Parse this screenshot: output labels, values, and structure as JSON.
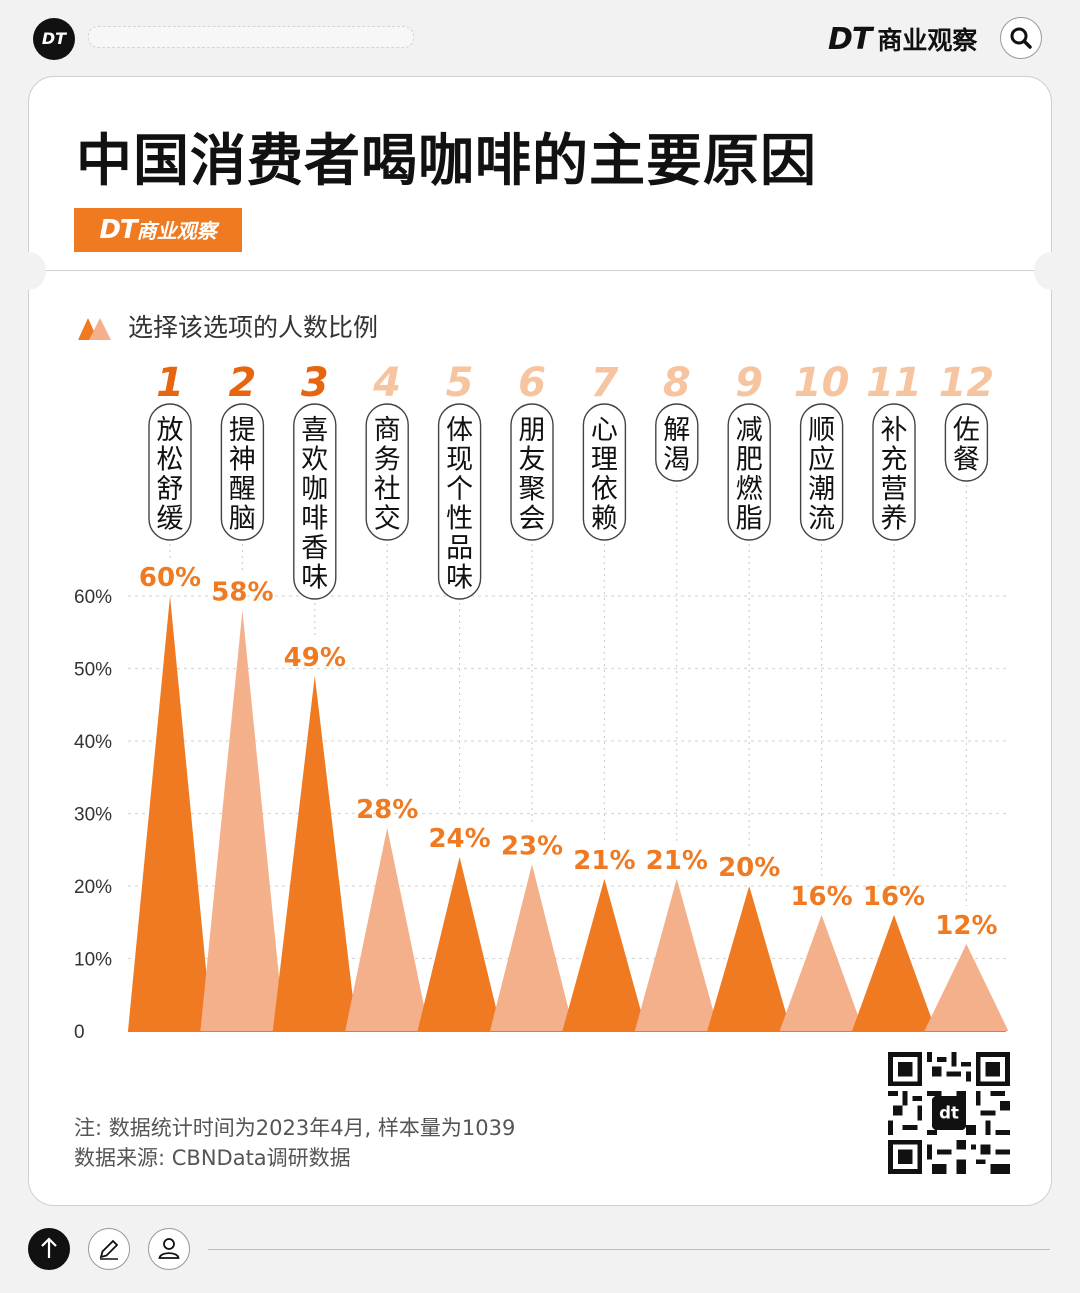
{
  "header": {
    "logo_text": "DT",
    "brand_dt": "DT",
    "brand_name": "商业观察"
  },
  "title": "中国消费者喝咖啡的主要原因",
  "brand_tag": {
    "dt": "DT",
    "name": "商业观察"
  },
  "legend_label": "选择该选项的人数比例",
  "colors": {
    "dark_orange": "#f07a21",
    "light_orange": "#f3b08a",
    "rank_top": "#e8650f",
    "rank_other": "#f6c49f"
  },
  "chart_data": {
    "type": "bar",
    "title": "中国消费者喝咖啡的主要原因",
    "ylim": [
      0,
      60
    ],
    "yticks": [
      "0",
      "10%",
      "20%",
      "30%",
      "40%",
      "50%",
      "60%"
    ],
    "grid": true,
    "legend": "top-left",
    "series": [
      {
        "name": "选择该选项的人数比例",
        "values": [
          60,
          58,
          49,
          28,
          24,
          23,
          21,
          21,
          20,
          16,
          16,
          12
        ],
        "labels": [
          "60%",
          "58%",
          "49%",
          "28%",
          "24%",
          "23%",
          "21%",
          "21%",
          "20%",
          "16%",
          "16%",
          "12%"
        ]
      }
    ],
    "categories": [
      "放松舒缓",
      "提神醒脑",
      "喜欢咖啡香味",
      "商务社交",
      "体现个性品味",
      "朋友聚会",
      "心理依赖",
      "解渴",
      "减肥燃脂",
      "顺应潮流",
      "补充营养",
      "佐餐"
    ],
    "ranks": [
      "1",
      "2",
      "3",
      "4",
      "5",
      "6",
      "7",
      "8",
      "9",
      "10",
      "11",
      "12"
    ]
  },
  "notes": {
    "line1": "注: 数据统计时间为2023年4月, 样本量为1039",
    "line2": "数据来源: CBNData调研数据"
  },
  "bottom_icons": [
    "arrow-up-icon",
    "pencil-icon",
    "user-icon"
  ]
}
